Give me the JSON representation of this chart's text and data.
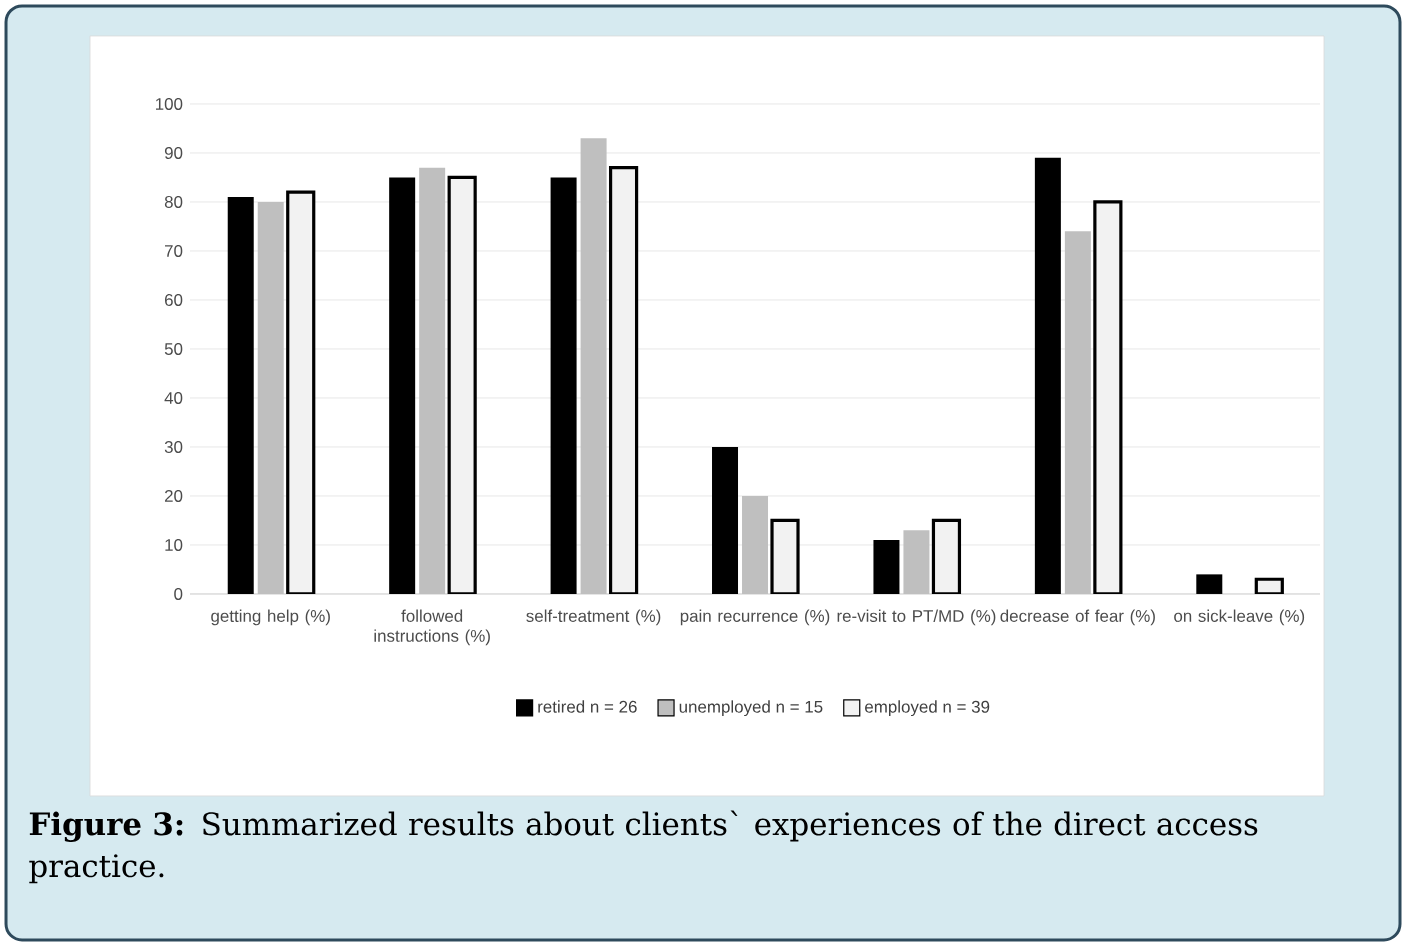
{
  "chart_data": {
    "type": "bar",
    "categories": [
      "getting help (%)",
      "followed instructions (%)",
      "self-treatment (%)",
      "pain recurrence (%)",
      "re-visit to PT/MD (%)",
      "decrease of fear (%)",
      "on sick-leave (%)"
    ],
    "series": [
      {
        "name": "retired n = 26",
        "color": "#000000",
        "values": [
          81,
          85,
          85,
          30,
          11,
          89,
          4
        ]
      },
      {
        "name": "unemployed n = 15",
        "color": "#bfbfbf",
        "values": [
          80,
          87,
          93,
          20,
          13,
          74,
          0
        ]
      },
      {
        "name": "employed n = 39",
        "color": "#f2f2f2",
        "values": [
          82,
          85,
          87,
          15,
          15,
          80,
          3
        ]
      }
    ],
    "ylim": [
      0,
      100
    ],
    "yticks": [
      0,
      10,
      20,
      30,
      40,
      50,
      60,
      70,
      80,
      90,
      100
    ],
    "grid": "y",
    "legend": "bottom",
    "annotations": [
      "**Figure 3:** Summarized results about clients` experiences of the direct access practice."
    ]
  }
}
